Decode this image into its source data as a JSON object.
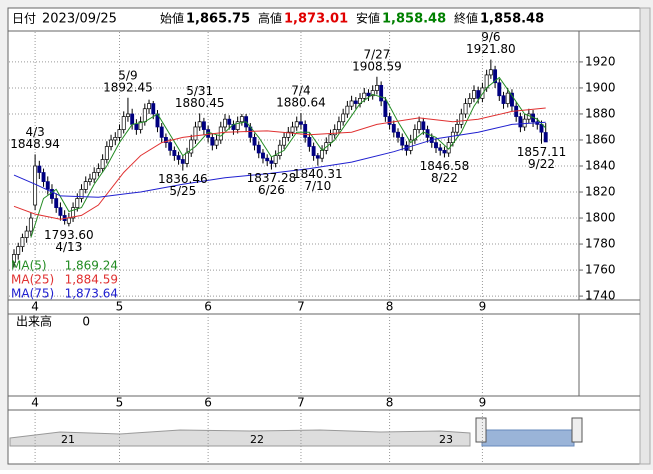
{
  "header": {
    "date_label": "日付",
    "date": "2023/09/25",
    "items": [
      {
        "label": "始値",
        "value": 1865.75,
        "value_label": "1,865.75",
        "color": "#000000"
      },
      {
        "label": "高値",
        "value": 1873.01,
        "value_label": "1,873.01",
        "color": "#e00000"
      },
      {
        "label": "安値",
        "value": 1858.48,
        "value_label": "1,858.48",
        "color": "#008000"
      },
      {
        "label": "終値",
        "value": 1858.48,
        "value_label": "1,858.48",
        "color": "#000000"
      }
    ]
  },
  "chart_data": {
    "type": "candlestick",
    "ylim": [
      1737,
      1943
    ],
    "yticks": [
      1740,
      1760,
      1780,
      1800,
      1820,
      1840,
      1860,
      1880,
      1900,
      1920
    ],
    "grid": true,
    "up_color": "#ffffff",
    "down_color": "#000080",
    "month_ticks": [
      {
        "value": 5,
        "label": "4"
      },
      {
        "value": 25,
        "label": "5"
      },
      {
        "value": 46,
        "label": "6"
      },
      {
        "value": 68,
        "label": "7"
      },
      {
        "value": 89,
        "label": "8"
      },
      {
        "value": 111,
        "label": "9"
      }
    ],
    "ohlc": [
      [
        1766,
        1776,
        1762,
        1772
      ],
      [
        1772,
        1781,
        1768,
        1778
      ],
      [
        1778,
        1788,
        1774,
        1785
      ],
      [
        1785,
        1794,
        1781,
        1790
      ],
      [
        1790,
        1804,
        1786,
        1800
      ],
      [
        1810,
        1848.94,
        1806,
        1840
      ],
      [
        1840,
        1844,
        1830,
        1835
      ],
      [
        1835,
        1838,
        1824,
        1828
      ],
      [
        1828,
        1832,
        1818,
        1822
      ],
      [
        1822,
        1826,
        1811,
        1815
      ],
      [
        1815,
        1819,
        1804,
        1808
      ],
      [
        1808,
        1812,
        1798,
        1802
      ],
      [
        1802,
        1806,
        1795,
        1798
      ],
      [
        1796,
        1804,
        1793.6,
        1800
      ],
      [
        1800,
        1812,
        1797,
        1808
      ],
      [
        1808,
        1819,
        1805,
        1815
      ],
      [
        1815,
        1826,
        1812,
        1822
      ],
      [
        1822,
        1832,
        1819,
        1828
      ],
      [
        1828,
        1834,
        1825,
        1830
      ],
      [
        1830,
        1839,
        1827,
        1835
      ],
      [
        1835,
        1842,
        1832,
        1838
      ],
      [
        1838,
        1849,
        1835,
        1845
      ],
      [
        1845,
        1859,
        1842,
        1855
      ],
      [
        1855,
        1864,
        1852,
        1860
      ],
      [
        1860,
        1866,
        1856,
        1862
      ],
      [
        1862,
        1872,
        1859,
        1868
      ],
      [
        1868,
        1882,
        1865,
        1878
      ],
      [
        1878,
        1892.45,
        1874,
        1880
      ],
      [
        1880,
        1884,
        1868,
        1872
      ],
      [
        1872,
        1876,
        1864,
        1868
      ],
      [
        1868,
        1878,
        1865,
        1874
      ],
      [
        1874,
        1888,
        1871,
        1884
      ],
      [
        1884,
        1891,
        1880,
        1888
      ],
      [
        1888,
        1890,
        1876,
        1880
      ],
      [
        1880,
        1883,
        1866,
        1870
      ],
      [
        1870,
        1873,
        1858,
        1862
      ],
      [
        1862,
        1865,
        1854,
        1858
      ],
      [
        1858,
        1861,
        1848,
        1852
      ],
      [
        1852,
        1855,
        1844,
        1848
      ],
      [
        1848,
        1851,
        1841,
        1845
      ],
      [
        1845,
        1848,
        1836.46,
        1842
      ],
      [
        1842,
        1854,
        1839,
        1850
      ],
      [
        1850,
        1864,
        1847,
        1860
      ],
      [
        1860,
        1874,
        1857,
        1870
      ],
      [
        1870,
        1880.45,
        1867,
        1874
      ],
      [
        1874,
        1877,
        1864,
        1868
      ],
      [
        1868,
        1871,
        1858,
        1862
      ],
      [
        1862,
        1865,
        1852,
        1856
      ],
      [
        1856,
        1864,
        1853,
        1860
      ],
      [
        1860,
        1874,
        1857,
        1870
      ],
      [
        1870,
        1880,
        1867,
        1876
      ],
      [
        1876,
        1879,
        1868,
        1872
      ],
      [
        1872,
        1875,
        1864,
        1868
      ],
      [
        1868,
        1878,
        1865,
        1874
      ],
      [
        1874,
        1880,
        1871,
        1878
      ],
      [
        1878,
        1880,
        1866,
        1870
      ],
      [
        1870,
        1873,
        1858,
        1862
      ],
      [
        1862,
        1865,
        1852,
        1856
      ],
      [
        1856,
        1859,
        1846,
        1850
      ],
      [
        1850,
        1853,
        1842,
        1846
      ],
      [
        1846,
        1849,
        1840,
        1844
      ],
      [
        1844,
        1847,
        1837.28,
        1842
      ],
      [
        1842,
        1852,
        1839,
        1848
      ],
      [
        1848,
        1860,
        1845,
        1856
      ],
      [
        1856,
        1866,
        1853,
        1862
      ],
      [
        1862,
        1870,
        1859,
        1866
      ],
      [
        1866,
        1874,
        1863,
        1870
      ],
      [
        1870,
        1878,
        1867,
        1874
      ],
      [
        1874,
        1880.64,
        1868,
        1872
      ],
      [
        1872,
        1875,
        1858,
        1862
      ],
      [
        1862,
        1865,
        1851,
        1855
      ],
      [
        1855,
        1858,
        1844,
        1848
      ],
      [
        1848,
        1850,
        1840.31,
        1846
      ],
      [
        1846,
        1856,
        1843,
        1852
      ],
      [
        1852,
        1862,
        1849,
        1858
      ],
      [
        1858,
        1868,
        1855,
        1864
      ],
      [
        1864,
        1872,
        1861,
        1868
      ],
      [
        1868,
        1878,
        1865,
        1874
      ],
      [
        1874,
        1884,
        1871,
        1880
      ],
      [
        1880,
        1890,
        1877,
        1886
      ],
      [
        1886,
        1894,
        1883,
        1890
      ],
      [
        1890,
        1893,
        1884,
        1888
      ],
      [
        1888,
        1896,
        1885,
        1892
      ],
      [
        1892,
        1900,
        1889,
        1896
      ],
      [
        1896,
        1899,
        1890,
        1894
      ],
      [
        1894,
        1902,
        1891,
        1898
      ],
      [
        1898,
        1908.59,
        1895,
        1902
      ],
      [
        1902,
        1905,
        1886,
        1890
      ],
      [
        1890,
        1893,
        1874,
        1878
      ],
      [
        1878,
        1881,
        1868,
        1872
      ],
      [
        1872,
        1875,
        1862,
        1866
      ],
      [
        1866,
        1869,
        1858,
        1862
      ],
      [
        1862,
        1865,
        1852,
        1856
      ],
      [
        1856,
        1859,
        1848,
        1852
      ],
      [
        1852,
        1864,
        1849,
        1860
      ],
      [
        1860,
        1872,
        1857,
        1868
      ],
      [
        1868,
        1878,
        1865,
        1874
      ],
      [
        1874,
        1877,
        1864,
        1868
      ],
      [
        1868,
        1871,
        1858,
        1862
      ],
      [
        1862,
        1865,
        1854,
        1858
      ],
      [
        1858,
        1861,
        1850,
        1854
      ],
      [
        1854,
        1857,
        1848,
        1852
      ],
      [
        1852,
        1855,
        1846.58,
        1850
      ],
      [
        1850,
        1862,
        1847,
        1858
      ],
      [
        1858,
        1870,
        1855,
        1866
      ],
      [
        1866,
        1876,
        1863,
        1872
      ],
      [
        1872,
        1884,
        1869,
        1880
      ],
      [
        1880,
        1892,
        1877,
        1888
      ],
      [
        1888,
        1896,
        1885,
        1892
      ],
      [
        1892,
        1902,
        1889,
        1898
      ],
      [
        1898,
        1901,
        1888,
        1892
      ],
      [
        1892,
        1904,
        1889,
        1900
      ],
      [
        1900,
        1914,
        1897,
        1910
      ],
      [
        1910,
        1921.8,
        1907,
        1914
      ],
      [
        1914,
        1917,
        1900,
        1904
      ],
      [
        1904,
        1907,
        1890,
        1894
      ],
      [
        1894,
        1897,
        1884,
        1888
      ],
      [
        1888,
        1900,
        1885,
        1896
      ],
      [
        1896,
        1899,
        1882,
        1886
      ],
      [
        1886,
        1889,
        1874,
        1878
      ],
      [
        1878,
        1881,
        1866,
        1870
      ],
      [
        1870,
        1880,
        1867,
        1876
      ],
      [
        1876,
        1884,
        1873,
        1880
      ],
      [
        1880,
        1883,
        1870,
        1874
      ],
      [
        1874,
        1877,
        1868,
        1872
      ],
      [
        1872,
        1875,
        1857.11,
        1866
      ],
      [
        1865.75,
        1873.01,
        1858.48,
        1858.48
      ]
    ],
    "annotations": [
      {
        "index": 5,
        "side": "high",
        "date": "4/3",
        "label": "1848.94"
      },
      {
        "index": 13,
        "side": "low",
        "date": "4/13",
        "label": "1793.60"
      },
      {
        "index": 27,
        "side": "high",
        "date": "5/9",
        "label": "1892.45"
      },
      {
        "index": 40,
        "side": "low",
        "date": "5/25",
        "label": "1836.46"
      },
      {
        "index": 44,
        "side": "high",
        "date": "5/31",
        "label": "1880.45"
      },
      {
        "index": 61,
        "side": "low",
        "date": "6/26",
        "label": "1837.28"
      },
      {
        "index": 68,
        "side": "high",
        "date": "7/4",
        "label": "1880.64"
      },
      {
        "index": 72,
        "side": "low",
        "date": "7/10",
        "label": "1840.31"
      },
      {
        "index": 86,
        "side": "high",
        "date": "7/27",
        "label": "1908.59"
      },
      {
        "index": 102,
        "side": "low",
        "date": "8/22",
        "label": "1846.58"
      },
      {
        "index": 113,
        "side": "high",
        "date": "9/6",
        "label": "1921.80"
      },
      {
        "index": 125,
        "side": "low",
        "date": "9/22",
        "label": "1857.11"
      }
    ],
    "series": [
      {
        "name": "MA(5)",
        "color": "#228b22",
        "value_label": "1,869.24",
        "x": [
          4,
          7,
          10,
          13,
          16,
          19,
          22,
          25,
          28,
          31,
          34,
          37,
          40,
          43,
          46,
          49,
          52,
          55,
          58,
          61,
          64,
          67,
          70,
          73,
          76,
          79,
          82,
          85,
          88,
          91,
          94,
          97,
          100,
          103,
          106,
          109,
          112,
          115,
          118,
          121,
          124,
          126
        ],
        "values": [
          1785,
          1815,
          1822,
          1805,
          1808,
          1826,
          1840,
          1858,
          1872,
          1874,
          1880,
          1864,
          1848,
          1855,
          1866,
          1863,
          1872,
          1874,
          1862,
          1847,
          1852,
          1866,
          1866,
          1852,
          1860,
          1874,
          1888,
          1895,
          1892,
          1874,
          1858,
          1866,
          1862,
          1853,
          1866,
          1886,
          1900,
          1908,
          1894,
          1880,
          1876,
          1869.24
        ]
      },
      {
        "name": "MA(25)",
        "color": "#e03030",
        "value_label": "1,884.59",
        "x": [
          0,
          5,
          11,
          16,
          20,
          26,
          30,
          35,
          40,
          50,
          60,
          70,
          80,
          86,
          96,
          104,
          110,
          118,
          126
        ],
        "values": [
          1809,
          1803,
          1799,
          1802,
          1810,
          1835,
          1848,
          1858,
          1862,
          1866,
          1867,
          1864,
          1866,
          1872,
          1877,
          1874,
          1876,
          1882,
          1884.59
        ]
      },
      {
        "name": "MA(75)",
        "color": "#2020d0",
        "value_label": "1,873.64",
        "x": [
          0,
          5,
          11,
          20,
          30,
          40,
          50,
          60,
          70,
          80,
          90,
          100,
          110,
          118,
          126
        ],
        "values": [
          1833,
          1826,
          1817,
          1816,
          1820,
          1826,
          1831,
          1834,
          1838,
          1843,
          1851,
          1861,
          1866,
          1872,
          1873.64
        ]
      }
    ],
    "volume_label": "出来高",
    "volume": 0,
    "scroller_years": [
      "21",
      "22",
      "23"
    ]
  }
}
